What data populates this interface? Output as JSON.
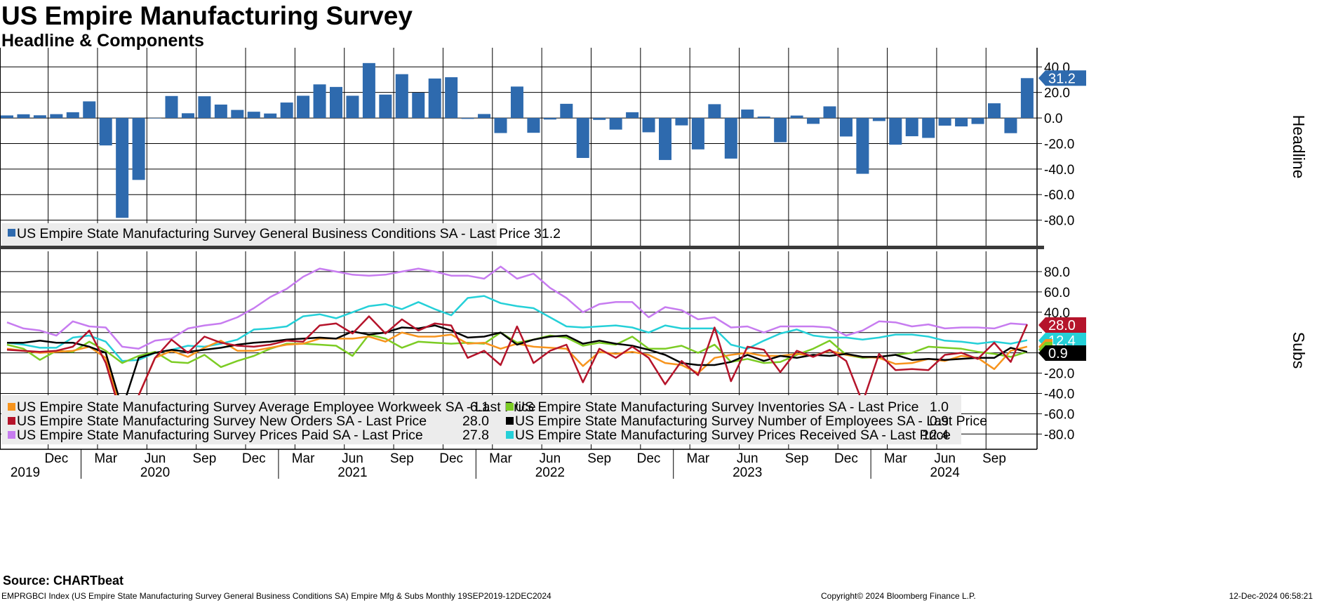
{
  "header": {
    "title": "US Empire Manufacturing Survey",
    "subtitle": "Headline & Components"
  },
  "footer": {
    "source": "Source: CHARTbeat",
    "left": "EMPRGBCI Index (US Empire State Manufacturing Survey General Business Conditions SA) Empire Mfg & Subs  Monthly 19SEP2019-12DEC2024",
    "copyright": "Copyright© 2024 Bloomberg Finance L.P.",
    "timestamp": "12-Dec-2024 06:58:21"
  },
  "colors": {
    "headline": "#2e6aae",
    "workweek": "#f7941d",
    "new_orders": "#b5142b",
    "prices_paid": "#c77cf0",
    "inventories": "#7ccc24",
    "employees": "#000000",
    "prices_received": "#25d0d8",
    "grid": "#000000",
    "legend_bg": "#ececec"
  },
  "x_axis": {
    "month_labels": [
      "Dec",
      "Mar",
      "Jun",
      "Sep",
      "Dec",
      "Mar",
      "Jun",
      "Sep",
      "Dec",
      "Mar",
      "Jun",
      "Sep",
      "Dec",
      "Mar",
      "Jun",
      "Sep",
      "Dec",
      "Mar",
      "Jun",
      "Sep"
    ],
    "year_labels": [
      "2019",
      "2020",
      "2021",
      "2022",
      "2023",
      "2024"
    ]
  },
  "chart_data": [
    {
      "type": "bar",
      "ylabel": "Headline",
      "ylim": [
        -100,
        55
      ],
      "yticks": [
        40,
        20,
        0,
        -20,
        -40,
        -60,
        -80
      ],
      "ytick_labels": [
        "40.0",
        "20.0",
        "0.0",
        "-20.0",
        "-40.0",
        "-60.0",
        "-80.0"
      ],
      "x_start": "2019-09",
      "grid": true,
      "legend_position": "bottom-left",
      "series": [
        {
          "name": "US Empire State Manufacturing Survey General Business Conditions SA - Last Price 31.2",
          "last_value_label": "31.2",
          "values": [
            2.0,
            2.9,
            2.1,
            3.0,
            4.5,
            13.0,
            -21.5,
            -78.2,
            -48.5,
            -0.2,
            17.2,
            3.7,
            17.0,
            10.5,
            6.3,
            4.9,
            3.5,
            12.1,
            17.4,
            26.3,
            24.3,
            17.4,
            43.0,
            18.3,
            34.3,
            19.8,
            30.9,
            31.9,
            -0.7,
            3.1,
            -11.8,
            24.6,
            -11.6,
            -1.2,
            11.1,
            -31.3,
            -1.5,
            -9.1,
            4.5,
            -11.2,
            -32.9,
            -5.8,
            -24.6,
            10.8,
            -31.8,
            6.6,
            1.1,
            -19.0,
            1.9,
            -4.6,
            9.1,
            -14.5,
            -43.7,
            -2.4,
            -20.9,
            -14.3,
            -15.6,
            -6.0,
            -6.6,
            -4.7,
            11.5,
            -11.9,
            31.2
          ]
        }
      ]
    },
    {
      "type": "line",
      "ylabel": "Subs",
      "ylim": [
        -95,
        100
      ],
      "yticks": [
        80,
        60,
        40,
        20,
        0,
        -20,
        -40,
        -60,
        -80
      ],
      "ytick_labels": [
        "80.0",
        "60.0",
        "40.0",
        "20.0",
        "0.0",
        "-20.0",
        "-40.0",
        "-60.0",
        "-80.0"
      ],
      "x_start": "2019-09",
      "grid": true,
      "legend_position": "bottom-left",
      "badges": [
        {
          "label": "28.0",
          "value": 28.0,
          "series": "new_orders"
        },
        {
          "label": "12.4",
          "value": 12.4,
          "series": "prices_received"
        },
        {
          "label": "6.1",
          "value": 6.1,
          "series": "workweek"
        },
        {
          "label": "1.0",
          "value": 1.0,
          "series": "inventories"
        },
        {
          "label": "0.9",
          "value": 0.9,
          "series": "employees"
        }
      ],
      "series": [
        {
          "key": "workweek",
          "name": "US Empire State Manufacturing Survey Average Employee Workweek SA - Last Price",
          "last_value_label": "6.1",
          "values": [
            4,
            2,
            0,
            1,
            2,
            6,
            -5,
            -60,
            -42,
            -5,
            2,
            -4,
            5,
            12,
            2,
            2,
            5,
            8,
            9,
            14,
            14,
            14,
            16,
            11,
            20,
            16,
            16,
            18,
            9,
            10,
            4,
            9,
            6,
            5,
            4,
            -13,
            1,
            -1,
            1,
            -2,
            -10,
            -12,
            -20,
            -5,
            -2,
            0,
            -3,
            -3,
            -1,
            -3,
            2,
            -2,
            -4,
            -5,
            -11,
            -10,
            -6,
            -8,
            -3,
            -5,
            -16,
            2,
            6.1
          ]
        },
        {
          "key": "new_orders",
          "name": "US Empire State Manufacturing Survey New Orders SA - Last Price",
          "last_value_label": "28.0",
          "values": [
            3,
            2,
            1,
            2,
            6,
            22,
            -10,
            -65,
            -42,
            -5,
            13,
            0,
            16,
            10,
            7,
            6,
            8,
            12,
            11,
            27,
            29,
            19,
            36,
            19,
            33,
            22,
            29,
            27,
            -5,
            2,
            -12,
            26,
            -10,
            2,
            8,
            -29,
            4,
            -5,
            6,
            -5,
            -31,
            -8,
            -22,
            25,
            -28,
            6,
            3,
            -19,
            2,
            -4,
            3,
            -8,
            -49,
            -1,
            -17,
            -16,
            -17,
            -2,
            0,
            -6,
            10,
            -9,
            28.0
          ]
        },
        {
          "key": "prices_paid",
          "name": "US Empire State Manufacturing Survey Prices Paid SA - Last Price",
          "last_value_label": "27.8",
          "values": [
            30,
            24,
            22,
            17,
            31,
            26,
            25,
            6,
            4,
            12,
            14,
            24,
            27,
            29,
            35,
            44,
            55,
            63,
            75,
            83,
            80,
            77,
            76,
            77,
            80,
            83,
            80,
            76,
            76,
            73,
            85,
            73,
            78,
            64,
            54,
            40,
            48,
            50,
            50,
            35,
            45,
            42,
            33,
            35,
            25,
            26,
            20,
            26,
            26,
            26,
            25,
            17,
            22,
            31,
            30,
            26,
            28,
            24,
            25,
            25,
            24,
            29,
            27.8
          ]
        },
        {
          "key": "inventories",
          "name": "US Empire State Manufacturing Survey Inventories SA - Last Price",
          "last_value_label": "1.0",
          "values": [
            8,
            4,
            -7,
            2,
            1,
            11,
            2,
            -10,
            -3,
            1,
            -9,
            -10,
            -2,
            -14,
            -8,
            -3,
            4,
            9,
            9,
            8,
            7,
            -3,
            18,
            14,
            5,
            11,
            10,
            9,
            10,
            9,
            20,
            10,
            13,
            17,
            15,
            7,
            10,
            8,
            16,
            4,
            4,
            7,
            0,
            8,
            -9,
            -6,
            -10,
            -9,
            -2,
            4,
            12,
            -2,
            -5,
            -4,
            -2,
            0,
            6,
            5,
            4,
            1,
            -1,
            -4,
            1.0
          ]
        },
        {
          "key": "employees",
          "name": "US Empire State Manufacturing Survey Number of Employees SA - Last Price",
          "last_value_label": "0.9",
          "values": [
            10,
            10,
            12,
            10,
            10,
            6,
            0,
            -55,
            -5,
            0,
            3,
            1,
            3,
            5,
            8,
            10,
            11,
            13,
            14,
            15,
            14,
            21,
            18,
            20,
            25,
            24,
            27,
            22,
            15,
            16,
            20,
            8,
            13,
            16,
            17,
            9,
            12,
            9,
            7,
            3,
            -2,
            -10,
            -12,
            -12,
            -9,
            -2,
            -8,
            -3,
            -5,
            -2,
            -3,
            -1,
            -4,
            -4,
            -2,
            -7,
            -6,
            -7,
            -6,
            -5,
            -5,
            5,
            0.9
          ]
        },
        {
          "key": "prices_received",
          "name": "US Empire State Manufacturing Survey Prices Received SA - Last Price",
          "last_value_label": "12.4",
          "values": [
            10,
            8,
            5,
            5,
            15,
            17,
            11,
            -8,
            -7,
            0,
            3,
            7,
            6,
            9,
            13,
            23,
            24,
            26,
            36,
            38,
            34,
            40,
            46,
            48,
            43,
            50,
            43,
            37,
            54,
            56,
            49,
            46,
            44,
            35,
            26,
            25,
            26,
            27,
            25,
            20,
            27,
            24,
            24,
            24,
            8,
            4,
            12,
            19,
            23,
            17,
            15,
            15,
            13,
            15,
            18,
            18,
            16,
            12,
            11,
            9,
            11,
            9,
            12.4
          ]
        }
      ]
    }
  ]
}
